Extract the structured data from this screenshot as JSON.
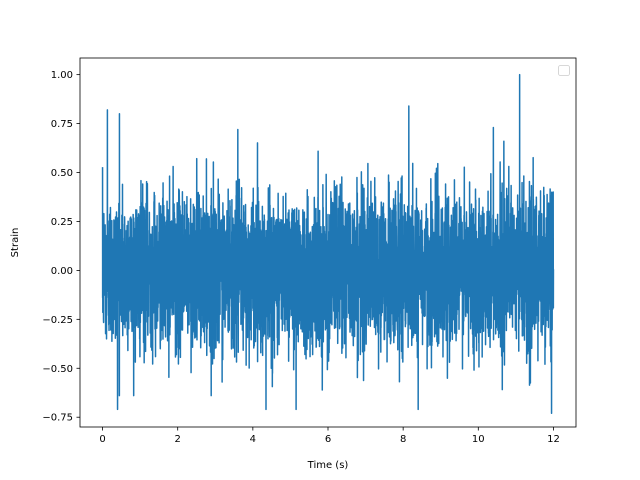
{
  "chart_data": {
    "type": "line",
    "title": "",
    "xlabel": "Time (s)",
    "ylabel": "Strain",
    "xlim": [
      -0.6,
      12.6
    ],
    "ylim": [
      -0.8,
      1.085
    ],
    "xticks": [
      0,
      2,
      4,
      6,
      8,
      10,
      12
    ],
    "xtick_labels": [
      "0",
      "2",
      "4",
      "6",
      "8",
      "10",
      "12"
    ],
    "yticks": [
      -0.75,
      -0.5,
      -0.25,
      0.0,
      0.25,
      0.5,
      0.75,
      1.0
    ],
    "ytick_labels": [
      "−0.75",
      "−0.50",
      "−0.25",
      "0.00",
      "0.25",
      "0.50",
      "0.75",
      "1.00"
    ],
    "grid": false,
    "legend": {
      "placement": "top-right",
      "entries": []
    },
    "series": [
      {
        "color": "#1f77b4",
        "x_range": [
          0,
          12
        ],
        "y_range": [
          -0.73,
          1.0
        ],
        "peaks": [
          {
            "x": 0.13,
            "y": 0.82
          },
          {
            "x": 0.45,
            "y": 0.8
          },
          {
            "x": 3.6,
            "y": 0.72
          },
          {
            "x": 8.15,
            "y": 0.84
          },
          {
            "x": 10.4,
            "y": 0.73
          },
          {
            "x": 11.1,
            "y": 1.0
          }
        ],
        "troughs": [
          {
            "x": 0.4,
            "y": -0.71
          },
          {
            "x": 4.35,
            "y": -0.71
          },
          {
            "x": 5.15,
            "y": -0.71
          },
          {
            "x": 8.4,
            "y": -0.71
          },
          {
            "x": 11.95,
            "y": -0.73
          }
        ]
      }
    ]
  }
}
